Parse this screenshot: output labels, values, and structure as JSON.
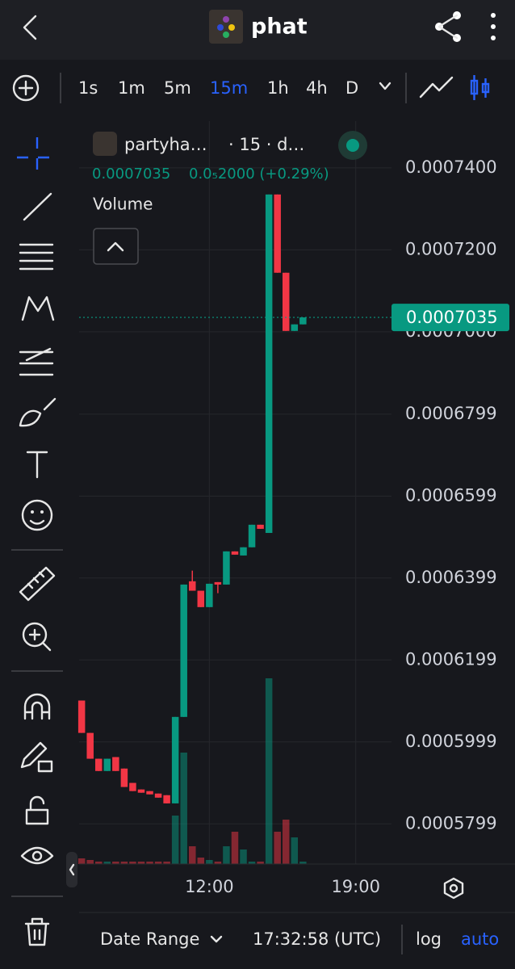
{
  "header": {
    "title": "phat"
  },
  "toolbar": {
    "intervals": [
      "1s",
      "1m",
      "5m",
      "15m",
      "1h",
      "4h",
      "D"
    ],
    "active": "15m"
  },
  "chart": {
    "type": "candlestick",
    "symbol": "partyha…",
    "meta": "· 15 · d…",
    "change": "0.0₅2000 (+0.29%)",
    "volume_label": "Volume",
    "last_price": 0.0007035,
    "up_color": "#089981",
    "down_color": "#f23645",
    "candles": {
      "open": [
        0.00061,
        0.0006021,
        0.0005958,
        0.0005928,
        0.0005962,
        0.0005934,
        0.0005899,
        0.0005883,
        0.0005879,
        0.0005873,
        0.0005869,
        0.0005849,
        0.000606,
        0.0006391,
        0.0006368,
        0.0006328,
        0.0006389,
        0.0006383,
        0.0006464,
        0.0006454,
        0.0006474,
        0.0006529,
        0.0006509,
        0.0007335,
        0.0007144,
        0.0007002,
        0.0007018
      ],
      "high": [
        0.00061,
        0.0006021,
        0.0005958,
        0.0005958,
        0.0005962,
        0.0005934,
        0.0005899,
        0.0005883,
        0.0005879,
        0.0005873,
        0.0005869,
        0.000606,
        0.0006383,
        0.0006417,
        0.0006368,
        0.0006385,
        0.0006389,
        0.0006464,
        0.0006464,
        0.0006474,
        0.0006529,
        0.0006529,
        0.0007335,
        0.0007335,
        0.0007144,
        0.0007018,
        0.0007035
      ],
      "low": [
        0.0006021,
        0.0005958,
        0.0005928,
        0.0005928,
        0.0005928,
        0.0005889,
        0.0005879,
        0.0005875,
        0.0005871,
        0.0005863,
        0.0005849,
        0.0005849,
        0.000606,
        0.0006368,
        0.0006328,
        0.0006328,
        0.0006362,
        0.0006383,
        0.0006456,
        0.0006454,
        0.0006474,
        0.0006519,
        0.0006509,
        0.0007144,
        0.0007002,
        0.0007002,
        0.0007018
      ],
      "close": [
        0.0006021,
        0.0005958,
        0.0005928,
        0.0005958,
        0.0005928,
        0.0005889,
        0.0005879,
        0.0005875,
        0.0005871,
        0.0005863,
        0.0005849,
        0.000606,
        0.0006383,
        0.0006368,
        0.0006328,
        0.0006385,
        0.0006383,
        0.0006464,
        0.0006456,
        0.0006474,
        0.0006529,
        0.0006519,
        0.0007335,
        0.0007144,
        0.0007002,
        0.0007018,
        0.0007035
      ]
    },
    "volume": [
      7,
      5,
      3,
      3,
      3,
      3,
      3,
      3,
      3,
      3,
      3,
      60,
      138,
      22,
      8,
      5,
      3,
      22,
      40,
      18,
      3,
      3,
      230,
      40,
      55,
      33,
      3
    ],
    "vlim": [
      0,
      300
    ],
    "xlim": [
      -0.3,
      36.4
    ],
    "xticks": [
      {
        "value": 15,
        "label": "12:00"
      },
      {
        "value": 32.2,
        "label": "19:00"
      }
    ],
    "ylim": [
      0.0005701,
      0.0007514
    ],
    "yticks": [
      {
        "value": 0.00074,
        "label": "0.0007400"
      },
      {
        "value": 0.00072,
        "label": "0.0007200"
      },
      {
        "value": 0.0007,
        "label": "0.0007000"
      },
      0.0006799,
      0.0006599,
      0.0006399,
      0.0006199,
      0.0005999,
      0.0005799
    ],
    "grid": true
  },
  "footer": {
    "date_range": "Date Range",
    "time": "17:32:58 (UTC)",
    "log": "log",
    "auto": "auto"
  }
}
